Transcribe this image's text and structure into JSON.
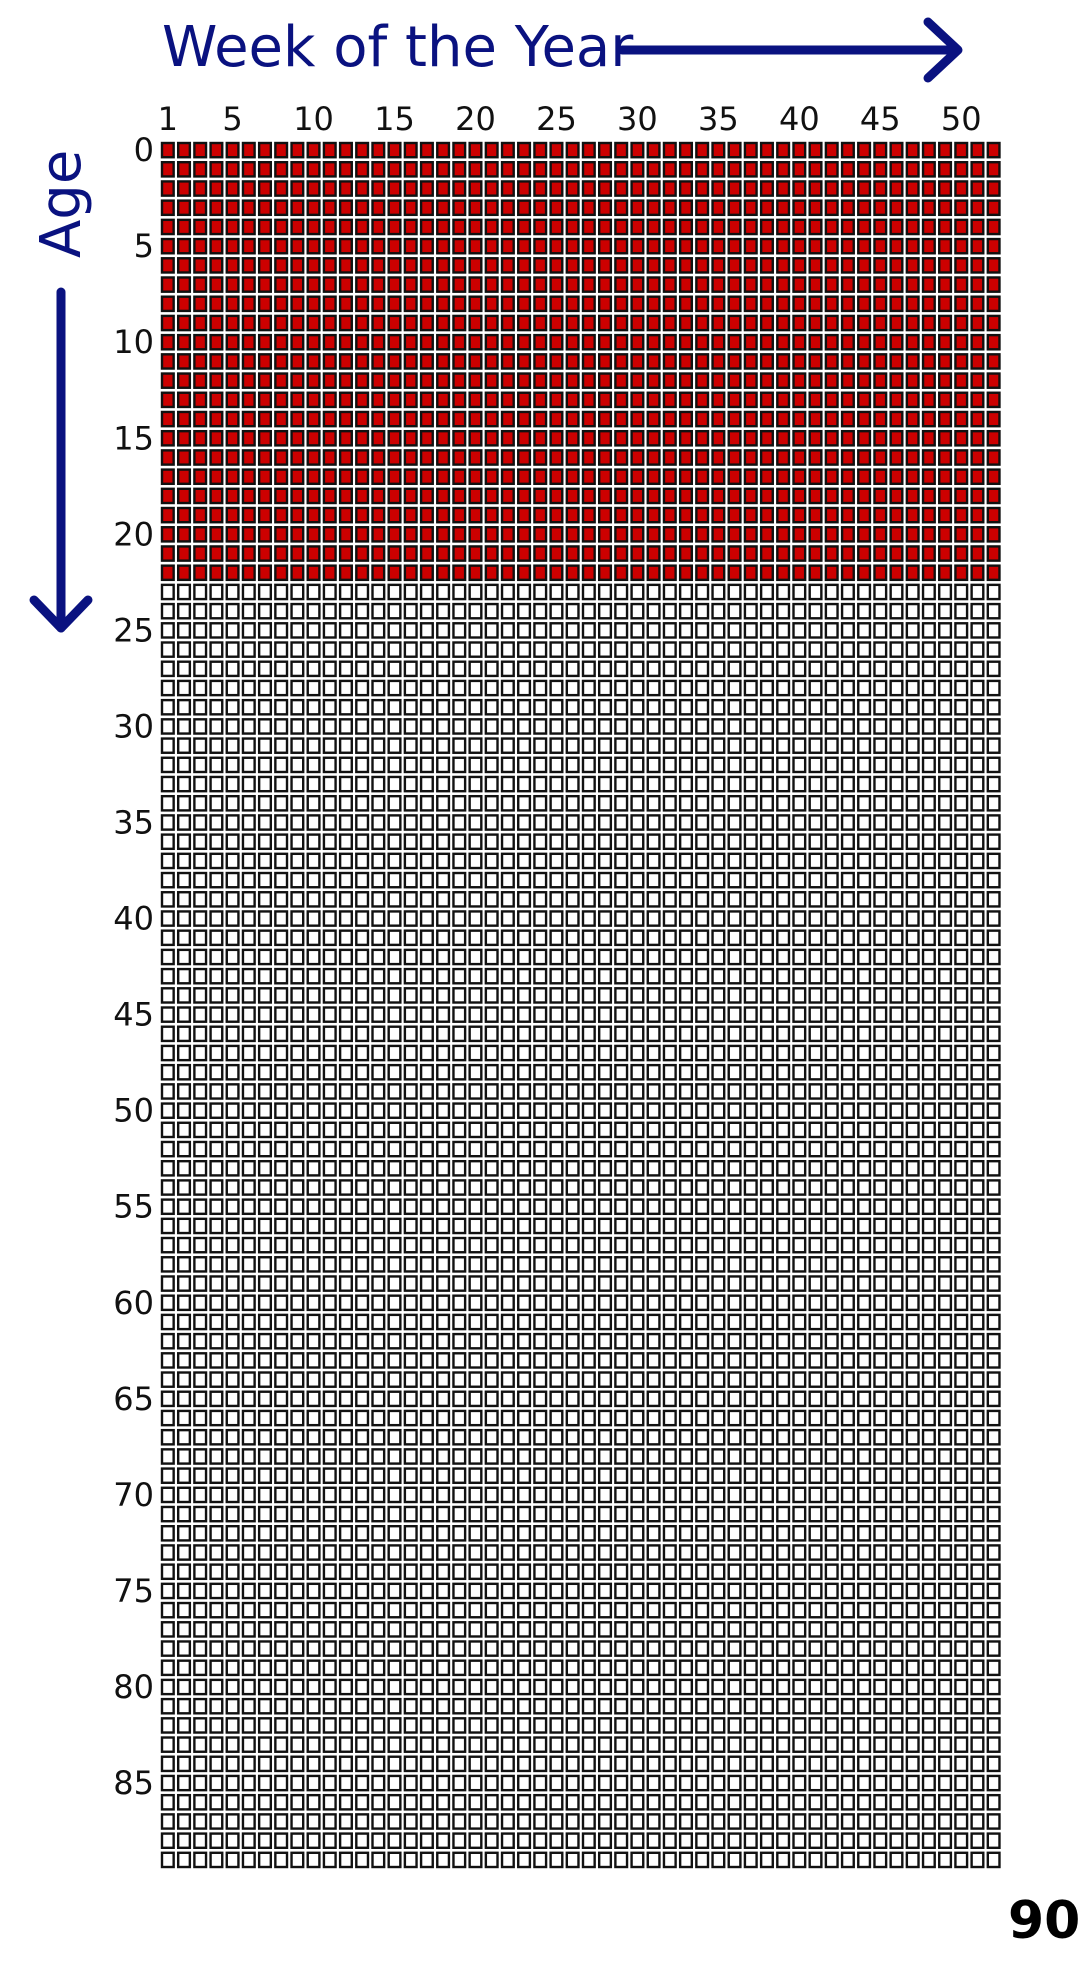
{
  "chart_data": {
    "type": "heatmap",
    "title": "",
    "xlabel": "Week of the Year",
    "ylabel": "Age",
    "x_ticks": [
      1,
      5,
      10,
      15,
      20,
      25,
      30,
      35,
      40,
      45,
      50
    ],
    "y_ticks": [
      0,
      5,
      10,
      15,
      20,
      25,
      30,
      35,
      40,
      45,
      50,
      55,
      60,
      65,
      70,
      75,
      80,
      85
    ],
    "end_label": "90",
    "weeks_per_year": 52,
    "years": 90,
    "years_lived_filled": 23,
    "colors": {
      "axis_title": "#0a1280",
      "filled": "#cc0000",
      "empty": "#ffffff",
      "border": "#111111"
    }
  }
}
